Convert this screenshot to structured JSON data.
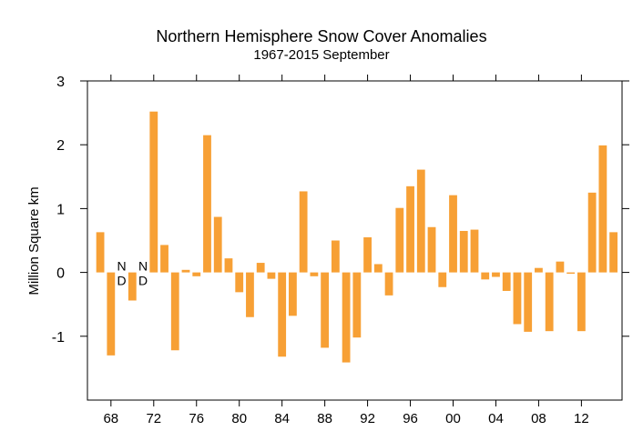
{
  "chart_data": {
    "type": "bar",
    "title": "Northern Hemisphere Snow Cover Anomalies",
    "subtitle": "1967-2015 September",
    "xlabel": "",
    "ylabel": "Million Square km",
    "ylim": [
      -2,
      3
    ],
    "yticks": [
      3,
      2,
      1,
      0,
      -1
    ],
    "xlim": [
      1965.8,
      2015.8
    ],
    "xticks": [
      {
        "year": 1968,
        "label": "68"
      },
      {
        "year": 1972,
        "label": "72"
      },
      {
        "year": 1976,
        "label": "76"
      },
      {
        "year": 1980,
        "label": "80"
      },
      {
        "year": 1984,
        "label": "84"
      },
      {
        "year": 1988,
        "label": "88"
      },
      {
        "year": 1992,
        "label": "92"
      },
      {
        "year": 1996,
        "label": "96"
      },
      {
        "year": 2000,
        "label": "00"
      },
      {
        "year": 2004,
        "label": "04"
      },
      {
        "year": 2008,
        "label": "08"
      },
      {
        "year": 2012,
        "label": "12"
      }
    ],
    "bar_color": "#f7a035",
    "x": [
      1967,
      1968,
      1969,
      1970,
      1971,
      1972,
      1973,
      1974,
      1975,
      1976,
      1977,
      1978,
      1979,
      1980,
      1981,
      1982,
      1983,
      1984,
      1985,
      1986,
      1987,
      1988,
      1989,
      1990,
      1991,
      1992,
      1993,
      1994,
      1995,
      1996,
      1997,
      1998,
      1999,
      2000,
      2001,
      2002,
      2003,
      2004,
      2005,
      2006,
      2007,
      2008,
      2009,
      2010,
      2011,
      2012,
      2013,
      2014,
      2015
    ],
    "values": [
      0.63,
      -1.3,
      null,
      -0.44,
      null,
      2.52,
      0.43,
      -1.22,
      0.04,
      -0.06,
      2.15,
      0.87,
      0.22,
      -0.31,
      -0.7,
      0.15,
      -0.1,
      -1.32,
      -0.68,
      1.27,
      -0.06,
      -1.18,
      0.5,
      -1.41,
      -1.02,
      0.55,
      0.13,
      -0.36,
      1.01,
      1.35,
      1.61,
      0.71,
      -0.23,
      1.21,
      0.65,
      0.67,
      -0.11,
      -0.07,
      -0.29,
      -0.81,
      -0.93,
      0.07,
      -0.92,
      0.17,
      -0.02,
      -0.92,
      1.25,
      1.99,
      0.63
    ],
    "annotations": [
      {
        "year": 1969,
        "text_top": "N",
        "text_bottom": "D"
      },
      {
        "year": 1971,
        "text_top": "N",
        "text_bottom": "D"
      }
    ]
  }
}
